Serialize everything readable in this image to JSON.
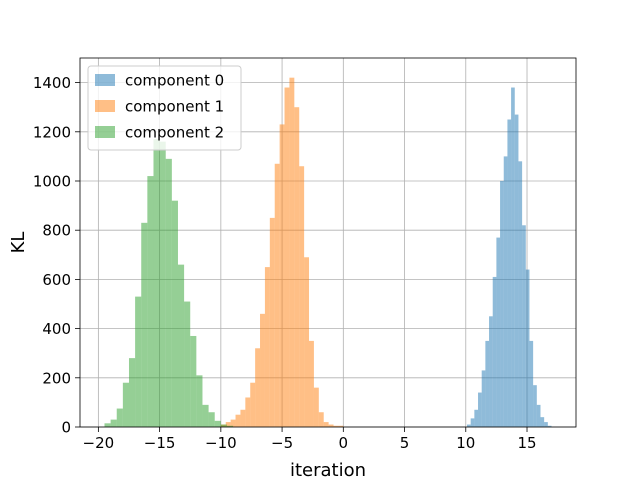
{
  "chart_data": {
    "type": "histogram",
    "title": "",
    "xlabel": "iteration",
    "ylabel": "KL",
    "xlim": [
      -21.5,
      19
    ],
    "ylim": [
      0,
      1500
    ],
    "xticks": [
      -20,
      -15,
      -10,
      -5,
      0,
      5,
      10,
      15
    ],
    "xtick_labels": [
      "−20",
      "−15",
      "−10",
      "−5",
      "0",
      "5",
      "10",
      "15"
    ],
    "yticks": [
      0,
      200,
      400,
      600,
      800,
      1000,
      1200,
      1400
    ],
    "ytick_labels": [
      "0",
      "200",
      "400",
      "600",
      "800",
      "1000",
      "1200",
      "1400"
    ],
    "grid": true,
    "legend_position": "top-left",
    "bar_opacity": 0.5,
    "series": [
      {
        "name": "component 0",
        "color": "#1f77b4",
        "bin_edges": [
          10.1,
          10.4,
          10.7,
          11.0,
          11.3,
          11.6,
          11.9,
          12.2,
          12.5,
          12.8,
          13.1,
          13.4,
          13.7,
          14.0,
          14.3,
          14.6,
          14.9,
          15.2,
          15.5,
          15.8,
          16.1,
          16.4,
          16.7,
          17.0
        ],
        "counts": [
          10,
          35,
          70,
          140,
          230,
          350,
          450,
          610,
          770,
          1000,
          1100,
          1250,
          1380,
          1270,
          1080,
          820,
          640,
          350,
          170,
          90,
          40,
          20,
          5
        ]
      },
      {
        "name": "component 1",
        "color": "#ff7f0e",
        "bin_edges": [
          -10.0,
          -9.6,
          -9.2,
          -8.8,
          -8.4,
          -8.0,
          -7.6,
          -7.2,
          -6.8,
          -6.4,
          -6.0,
          -5.6,
          -5.2,
          -4.8,
          -4.4,
          -4.0,
          -3.6,
          -3.2,
          -2.8,
          -2.4,
          -2.0,
          -1.6,
          -1.2,
          -0.8,
          -0.4,
          0.0
        ],
        "counts": [
          10,
          20,
          30,
          50,
          70,
          120,
          180,
          320,
          460,
          650,
          850,
          1070,
          1230,
          1380,
          1420,
          1300,
          1060,
          690,
          350,
          160,
          60,
          20,
          10,
          5,
          5
        ]
      },
      {
        "name": "component 2",
        "color": "#2ca02c",
        "bin_edges": [
          -19.5,
          -19.0,
          -18.5,
          -18.0,
          -17.5,
          -17.0,
          -16.5,
          -16.0,
          -15.5,
          -15.0,
          -14.5,
          -14.0,
          -13.5,
          -13.0,
          -12.5,
          -12.0,
          -11.5,
          -11.0,
          -10.5,
          -10.0,
          -9.5,
          -9.0
        ],
        "counts": [
          15,
          30,
          75,
          180,
          280,
          530,
          830,
          1020,
          1170,
          1160,
          1090,
          920,
          660,
          510,
          370,
          210,
          90,
          60,
          25,
          10,
          5
        ]
      }
    ]
  }
}
